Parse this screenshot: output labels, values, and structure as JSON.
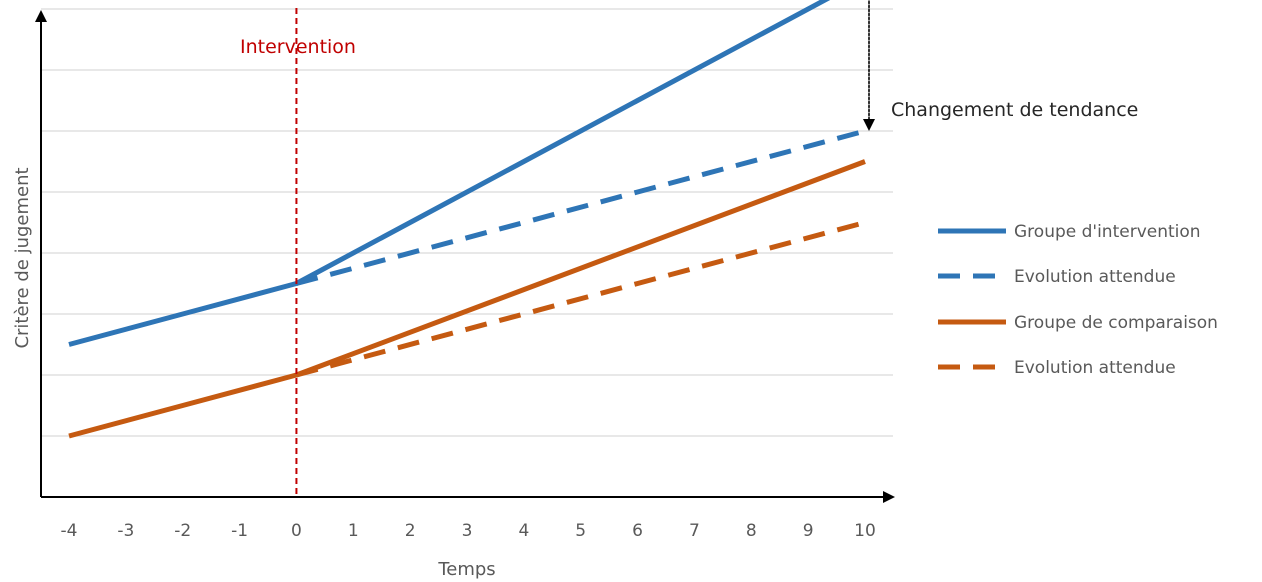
{
  "chart_data": {
    "type": "line",
    "xlabel": "Temps",
    "ylabel": "Critère de jugement",
    "x": [
      -4,
      -3,
      -2,
      -1,
      0,
      1,
      2,
      3,
      4,
      5,
      6,
      7,
      8,
      9,
      10
    ],
    "xlim": [
      -4,
      10
    ],
    "ylim": [
      0,
      8
    ],
    "grid": true,
    "y_ticks_labeled": false,
    "legend_position": "right",
    "series": [
      {
        "name": "Groupe d'intervention",
        "style": "solid",
        "color": "#2e75b6",
        "points": [
          [
            -4,
            2.5
          ],
          [
            -2,
            3.0
          ],
          [
            0,
            3.5
          ],
          [
            10,
            8.5
          ]
        ]
      },
      {
        "name": "Evolution attendue",
        "style": "dashed",
        "color": "#2e75b6",
        "points": [
          [
            0,
            3.5
          ],
          [
            10,
            6.0
          ]
        ]
      },
      {
        "name": "Groupe de comparaison",
        "style": "solid",
        "color": "#c55a11",
        "points": [
          [
            -4,
            1.0
          ],
          [
            -2,
            1.5
          ],
          [
            0,
            2.0
          ],
          [
            10,
            5.5
          ]
        ]
      },
      {
        "name": "Evolution attendue",
        "style": "dashed",
        "color": "#c55a11",
        "points": [
          [
            0,
            2.0
          ],
          [
            10,
            4.5
          ]
        ]
      }
    ],
    "annotations": {
      "intervention": {
        "label": "Intervention",
        "x": 0,
        "color": "#c00000"
      },
      "trend_change": {
        "label": "Changement de tendance",
        "x": 10,
        "y_from": 8.5,
        "y_to": 6.0
      }
    }
  }
}
